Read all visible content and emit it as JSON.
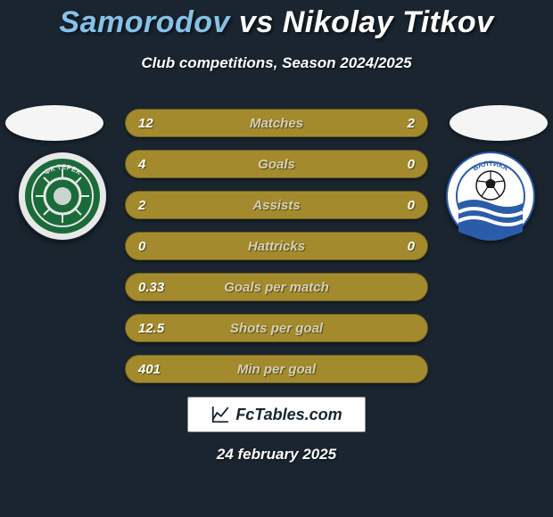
{
  "header": {
    "player1": "Samorodov",
    "vs": "vs",
    "player2": "Nikolay Titkov",
    "subtitle": "Club competitions, Season 2024/2025",
    "player1_color": "#85c1e9",
    "player2_color": "#ffffff"
  },
  "clubs": {
    "left": {
      "name": "terek-club-badge",
      "bg_color": "#1b6b3a",
      "ring_color": "#e8e8e8",
      "label": "ФК ТЕРЕК"
    },
    "right": {
      "name": "baltika-club-badge",
      "bg_color": "#ffffff",
      "ring_color": "#2a5caa",
      "stripes": "#2a5caa",
      "label": "БАЛТИКА"
    }
  },
  "stats": {
    "row_bg": "#a38b2d",
    "row_border": "#6d5e20",
    "label_color": "#d6d0b4",
    "value_color": "#ffffff",
    "rows": [
      {
        "left": "12",
        "label": "Matches",
        "right": "2"
      },
      {
        "left": "4",
        "label": "Goals",
        "right": "0"
      },
      {
        "left": "2",
        "label": "Assists",
        "right": "0"
      },
      {
        "left": "0",
        "label": "Hattricks",
        "right": "0"
      },
      {
        "left": "0.33",
        "label": "Goals per match",
        "right": ""
      },
      {
        "left": "12.5",
        "label": "Shots per goal",
        "right": ""
      },
      {
        "left": "401",
        "label": "Min per goal",
        "right": ""
      }
    ]
  },
  "footer": {
    "site": "FcTables.com",
    "date": "24 february 2025"
  },
  "page": {
    "background": "#1a2530",
    "disc_color": "#f5f5f5"
  }
}
